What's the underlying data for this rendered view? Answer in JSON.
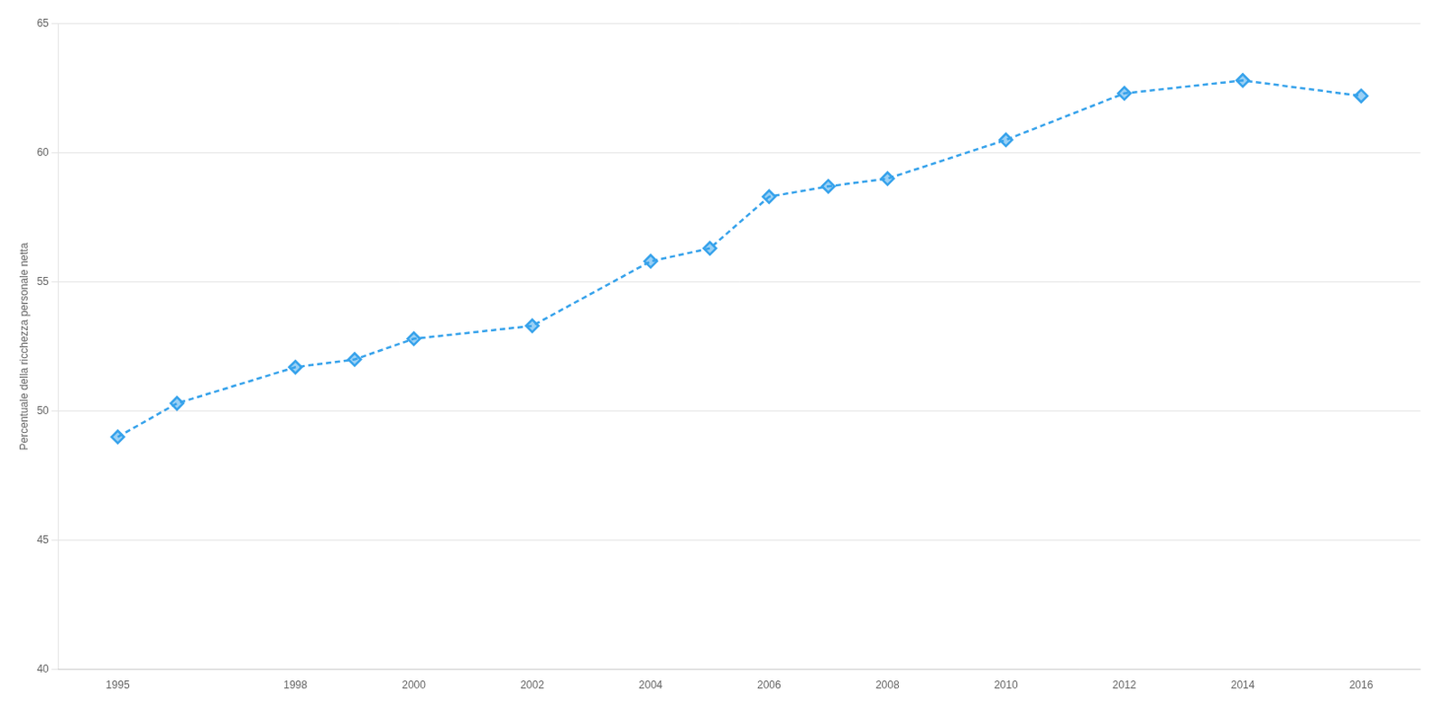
{
  "chart_data": {
    "type": "line",
    "x": [
      1995,
      1996,
      1998,
      1999,
      2000,
      2002,
      2004,
      2005,
      2006,
      2007,
      2008,
      2010,
      2012,
      2014,
      2016
    ],
    "values": [
      49.0,
      50.3,
      51.7,
      52.0,
      52.8,
      53.3,
      55.8,
      56.3,
      58.3,
      58.7,
      59.0,
      60.5,
      62.3,
      62.8,
      62.2
    ],
    "ylabel": "Percentuale della ricchezza personale netta",
    "xlim": [
      1994,
      2017
    ],
    "xticks": [
      1995,
      1998,
      2000,
      2002,
      2004,
      2006,
      2008,
      2010,
      2012,
      2014,
      2016
    ],
    "ylim": [
      40,
      65
    ],
    "yticks": [
      40,
      45,
      50,
      55,
      60,
      65
    ],
    "grid": true,
    "marker": "diamond",
    "line_style": "dashed"
  }
}
